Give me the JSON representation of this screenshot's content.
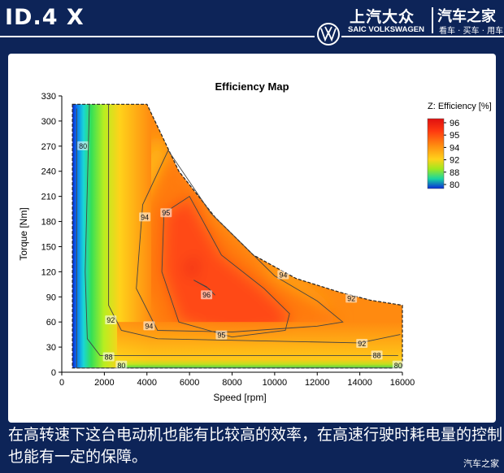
{
  "header": {
    "model": "ID.4 X",
    "brand_cn": "上汽大众",
    "brand_en": "SAIC VOLKSWAGEN",
    "site_name": "汽车之家",
    "site_tagline": "看车 · 买车 · 用车"
  },
  "caption": "在高转速下这台电动机也能有比较高的效率，在高速行驶时耗电量的控制也能有一定的保障。",
  "watermark": "汽车之家",
  "chart_data": {
    "type": "heatmap",
    "title": "Efficiency Map",
    "xlabel": "Speed [rpm]",
    "ylabel": "Torque [Nm]",
    "xlim": [
      0,
      16000
    ],
    "ylim": [
      0,
      330
    ],
    "xticks": [
      0,
      2000,
      4000,
      6000,
      8000,
      10000,
      12000,
      14000,
      16000
    ],
    "yticks": [
      0,
      30,
      60,
      90,
      120,
      150,
      180,
      210,
      240,
      270,
      300,
      330
    ],
    "colorbar": {
      "title": "Z: Efficiency [%]",
      "ticks": [
        96,
        95,
        94,
        92,
        88,
        80
      ]
    },
    "envelope": [
      [
        500,
        320
      ],
      [
        4000,
        320
      ],
      [
        5500,
        240
      ],
      [
        7200,
        185
      ],
      [
        9000,
        140
      ],
      [
        11000,
        112
      ],
      [
        13000,
        96
      ],
      [
        14500,
        86
      ],
      [
        16000,
        80
      ],
      [
        16000,
        5
      ],
      [
        500,
        5
      ]
    ],
    "contours": [
      {
        "level": 80,
        "label": "80",
        "points": [
          [
            700,
            315
          ],
          [
            700,
            5
          ],
          [
            15800,
            5
          ]
        ],
        "label_positions": [
          [
            1000,
            270
          ],
          [
            2800,
            8
          ],
          [
            15800,
            8
          ]
        ]
      },
      {
        "level": 88,
        "label": "88",
        "points": [
          [
            1300,
            320
          ],
          [
            1100,
            120
          ],
          [
            1200,
            40
          ],
          [
            1800,
            20
          ],
          [
            15800,
            20
          ]
        ],
        "label_positions": [
          [
            2200,
            18
          ],
          [
            14800,
            20
          ]
        ]
      },
      {
        "level": 92,
        "label": "92",
        "points": [
          [
            2200,
            320
          ],
          [
            2200,
            80
          ],
          [
            2800,
            50
          ],
          [
            4500,
            40
          ],
          [
            14000,
            35
          ],
          [
            15900,
            45
          ]
        ],
        "label_positions": [
          [
            2300,
            62
          ],
          [
            14100,
            34
          ],
          [
            13600,
            88
          ]
        ]
      },
      {
        "level": 94,
        "label": "94",
        "points": [
          [
            5000,
            265
          ],
          [
            3800,
            200
          ],
          [
            3500,
            100
          ],
          [
            4500,
            50
          ],
          [
            8000,
            48
          ],
          [
            12000,
            55
          ],
          [
            13200,
            60
          ],
          [
            12000,
            85
          ],
          [
            10000,
            115
          ],
          [
            7000,
            190
          ],
          [
            5000,
            265
          ]
        ],
        "label_positions": [
          [
            3900,
            185
          ],
          [
            4100,
            55
          ],
          [
            10400,
            116
          ]
        ]
      },
      {
        "level": 95,
        "label": "95",
        "points": [
          [
            6000,
            210
          ],
          [
            4800,
            190
          ],
          [
            4700,
            120
          ],
          [
            5500,
            60
          ],
          [
            8000,
            42
          ],
          [
            10500,
            50
          ],
          [
            10700,
            70
          ],
          [
            9500,
            100
          ],
          [
            7500,
            140
          ],
          [
            6000,
            210
          ]
        ],
        "label_positions": [
          [
            4900,
            190
          ],
          [
            7500,
            44
          ]
        ]
      },
      {
        "level": 96,
        "label": "96",
        "points": [
          [
            6200,
            110
          ],
          [
            6900,
            100
          ],
          [
            7200,
            92
          ],
          [
            6800,
            102
          ],
          [
            6200,
            110
          ]
        ],
        "label_positions": [
          [
            6800,
            92
          ]
        ]
      }
    ]
  }
}
